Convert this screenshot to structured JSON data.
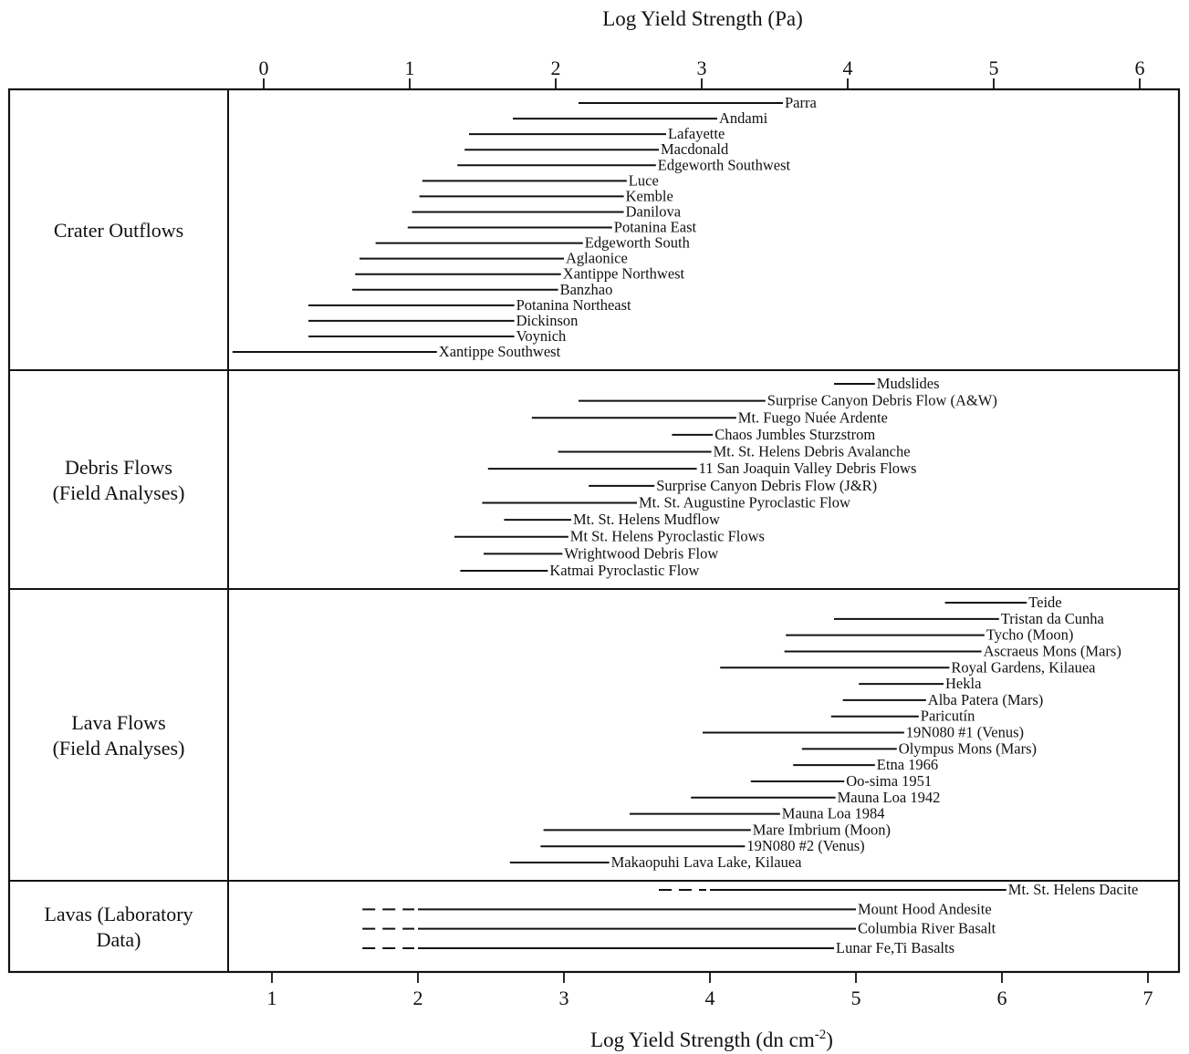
{
  "chart_data": {
    "type": "range-bar",
    "top_axis": {
      "label": "Log Yield Strength (Pa)",
      "ticks": [
        0,
        1,
        2,
        3,
        4,
        5,
        6
      ],
      "tick_labels": [
        "0",
        "1",
        "2",
        "3",
        "4",
        "5",
        "6"
      ]
    },
    "bottom_axis": {
      "label": "Log Yield Strength (dn cm",
      "label_superscript": "-2",
      "label_suffix": ")",
      "ticks": [
        1,
        2,
        3,
        4,
        5,
        6,
        7
      ],
      "tick_labels": [
        "1",
        "2",
        "3",
        "4",
        "5",
        "6",
        "7"
      ]
    },
    "xlim_bottom": [
      0.55,
      7.25
    ],
    "groups": [
      {
        "name": "Crater Outflows",
        "items": [
          {
            "label": "Parra",
            "start": 3.1,
            "end": 4.5
          },
          {
            "label": "Andami",
            "start": 2.65,
            "end": 4.05
          },
          {
            "label": "Lafayette",
            "start": 2.35,
            "end": 3.7
          },
          {
            "label": "Macdonald",
            "start": 2.32,
            "end": 3.65
          },
          {
            "label": "Edgeworth Southwest",
            "start": 2.27,
            "end": 3.63
          },
          {
            "label": "Luce",
            "start": 2.03,
            "end": 3.43
          },
          {
            "label": "Kemble",
            "start": 2.01,
            "end": 3.41
          },
          {
            "label": "Danilova",
            "start": 1.96,
            "end": 3.41
          },
          {
            "label": "Potanina East",
            "start": 1.93,
            "end": 3.33
          },
          {
            "label": "Edgeworth South",
            "start": 1.71,
            "end": 3.13
          },
          {
            "label": "Aglaonice",
            "start": 1.6,
            "end": 3.0
          },
          {
            "label": "Xantippe Northwest",
            "start": 1.57,
            "end": 2.98
          },
          {
            "label": "Banzhao",
            "start": 1.55,
            "end": 2.96
          },
          {
            "label": "Potanina Northeast",
            "start": 1.25,
            "end": 2.66
          },
          {
            "label": "Dickinson",
            "start": 1.25,
            "end": 2.66
          },
          {
            "label": "Voynich",
            "start": 1.25,
            "end": 2.66
          },
          {
            "label": "Xantippe Southwest",
            "start": 0.73,
            "end": 2.13
          }
        ]
      },
      {
        "name": "Debris Flows",
        "name_line2": "(Field Analyses)",
        "items": [
          {
            "label": "Mudslides",
            "start": 4.85,
            "end": 5.13
          },
          {
            "label": "Surprise Canyon Debris Flow (A&W)",
            "start": 3.1,
            "end": 4.38
          },
          {
            "label": "Mt. Fuego Nuée Ardente",
            "start": 2.78,
            "end": 4.18
          },
          {
            "label": "Chaos Jumbles Sturzstrom",
            "start": 3.74,
            "end": 4.02
          },
          {
            "label": "Mt. St. Helens Debris Avalanche",
            "start": 2.96,
            "end": 4.01
          },
          {
            "label": "11 San Joaquin Valley Debris Flows",
            "start": 2.48,
            "end": 3.91
          },
          {
            "label": "Surprise Canyon Debris Flow (J&R)",
            "start": 3.17,
            "end": 3.62
          },
          {
            "label": "Mt. St. Augustine Pyroclastic Flow",
            "start": 2.44,
            "end": 3.5
          },
          {
            "label": "Mt. St. Helens Mudflow",
            "start": 2.59,
            "end": 3.05
          },
          {
            "label": "Mt St. Helens Pyroclastic Flows",
            "start": 2.25,
            "end": 3.03
          },
          {
            "label": "Wrightwood Debris Flow",
            "start": 2.45,
            "end": 2.99
          },
          {
            "label": "Katmai Pyroclastic Flow",
            "start": 2.29,
            "end": 2.89
          }
        ]
      },
      {
        "name": "Lava Flows",
        "name_line2": "(Field Analyses)",
        "items": [
          {
            "label": "Teide",
            "start": 5.61,
            "end": 6.17
          },
          {
            "label": "Tristan da Cunha",
            "start": 4.85,
            "end": 5.98
          },
          {
            "label": "Tycho (Moon)",
            "start": 4.52,
            "end": 5.88
          },
          {
            "label": "Ascraeus Mons (Mars)",
            "start": 4.51,
            "end": 5.86
          },
          {
            "label": "Royal Gardens, Kilauea",
            "start": 4.07,
            "end": 5.64
          },
          {
            "label": "Hekla",
            "start": 5.02,
            "end": 5.6
          },
          {
            "label": "Alba Patera (Mars)",
            "start": 4.91,
            "end": 5.48
          },
          {
            "label": "Paricutín",
            "start": 4.83,
            "end": 5.43
          },
          {
            "label": "19N080 #1 (Venus)",
            "start": 3.95,
            "end": 5.33
          },
          {
            "label": "Olympus Mons (Mars)",
            "start": 4.63,
            "end": 5.28
          },
          {
            "label": "Etna 1966",
            "start": 4.57,
            "end": 5.13
          },
          {
            "label": "Oo-sima 1951",
            "start": 4.28,
            "end": 4.92
          },
          {
            "label": "Mauna Loa 1942",
            "start": 3.87,
            "end": 4.86
          },
          {
            "label": "Mauna Loa 1984",
            "start": 3.45,
            "end": 4.48
          },
          {
            "label": "Mare Imbrium (Moon)",
            "start": 2.86,
            "end": 4.28
          },
          {
            "label": "19N080 #2 (Venus)",
            "start": 2.84,
            "end": 4.24
          },
          {
            "label": "Makaopuhi Lava Lake, Kilauea",
            "start": 2.63,
            "end": 3.31
          }
        ]
      },
      {
        "name": "Lavas (Laboratory",
        "name_line2": "Data)",
        "items": [
          {
            "label": "Mt. St. Helens Dacite",
            "start": 4.0,
            "end": 6.03,
            "dashed_start": 3.65
          },
          {
            "label": "Mount Hood Andesite",
            "start": 2.0,
            "end": 5.0,
            "dashed_start": 1.62
          },
          {
            "label": "Columbia River Basalt",
            "start": 2.0,
            "end": 5.0,
            "dashed_start": 1.62
          },
          {
            "label": "Lunar Fe,Ti Basalts",
            "start": 2.0,
            "end": 4.85,
            "dashed_start": 1.62
          }
        ]
      }
    ]
  }
}
